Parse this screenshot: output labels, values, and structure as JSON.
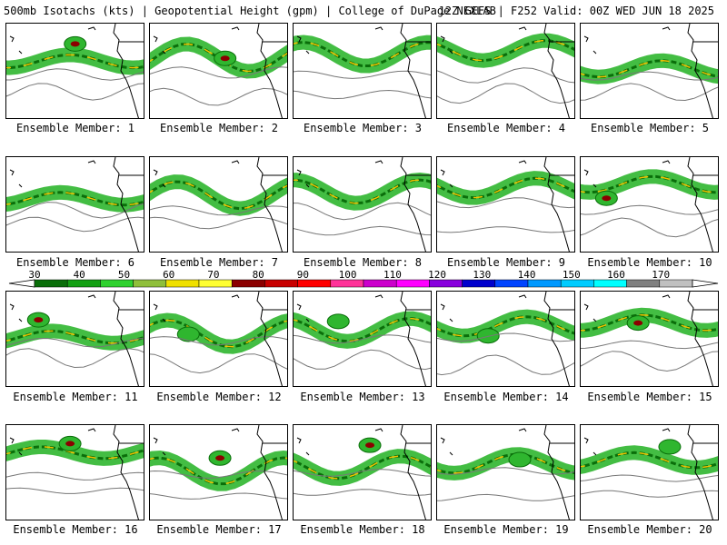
{
  "header": {
    "left": "500mb Isotachs (kts) | Geopotential Height (gpm) | College of DuPage NEXLAB",
    "right": "12Z GEFS | F252 Valid: 00Z WED JUN 18 2025"
  },
  "panel_label_prefix": "Ensemble Member:",
  "members": [
    {
      "label": "Ensemble Member: 1"
    },
    {
      "label": "Ensemble Member: 2"
    },
    {
      "label": "Ensemble Member: 3"
    },
    {
      "label": "Ensemble Member: 4"
    },
    {
      "label": "Ensemble Member: 5"
    },
    {
      "label": "Ensemble Member: 6"
    },
    {
      "label": "Ensemble Member: 7"
    },
    {
      "label": "Ensemble Member: 8"
    },
    {
      "label": "Ensemble Member: 9"
    },
    {
      "label": "Ensemble Member: 10"
    },
    {
      "label": "Ensemble Member: 11"
    },
    {
      "label": "Ensemble Member: 12"
    },
    {
      "label": "Ensemble Member: 13"
    },
    {
      "label": "Ensemble Member: 14"
    },
    {
      "label": "Ensemble Member: 15"
    },
    {
      "label": "Ensemble Member: 16"
    },
    {
      "label": "Ensemble Member: 17"
    },
    {
      "label": "Ensemble Member: 18"
    },
    {
      "label": "Ensemble Member: 19"
    },
    {
      "label": "Ensemble Member: 20"
    }
  ],
  "colorbar": {
    "tick_labels": [
      "30",
      "40",
      "50",
      "60",
      "70",
      "80",
      "90",
      "100",
      "110",
      "120",
      "130",
      "140",
      "150",
      "160",
      "170"
    ],
    "colors": [
      "#0a6e0a",
      "#14a014",
      "#2fd12f",
      "#8fbf3a",
      "#f0e000",
      "#ffff33",
      "#8b0000",
      "#c80000",
      "#ff0000",
      "#ff3399",
      "#cc00cc",
      "#ff00ff",
      "#8800dd",
      "#0000cc",
      "#0044ff",
      "#0099ff",
      "#00ccff",
      "#00ffff",
      "#808080",
      "#c0c0c0"
    ]
  },
  "map_colors": {
    "jet_low": "#2fb62f",
    "jet_mid": "#0a6e0a",
    "jet_core": "#f0c000",
    "jet_max": "#8b0000",
    "height_contour": "#777777",
    "coastline": "#000000"
  }
}
